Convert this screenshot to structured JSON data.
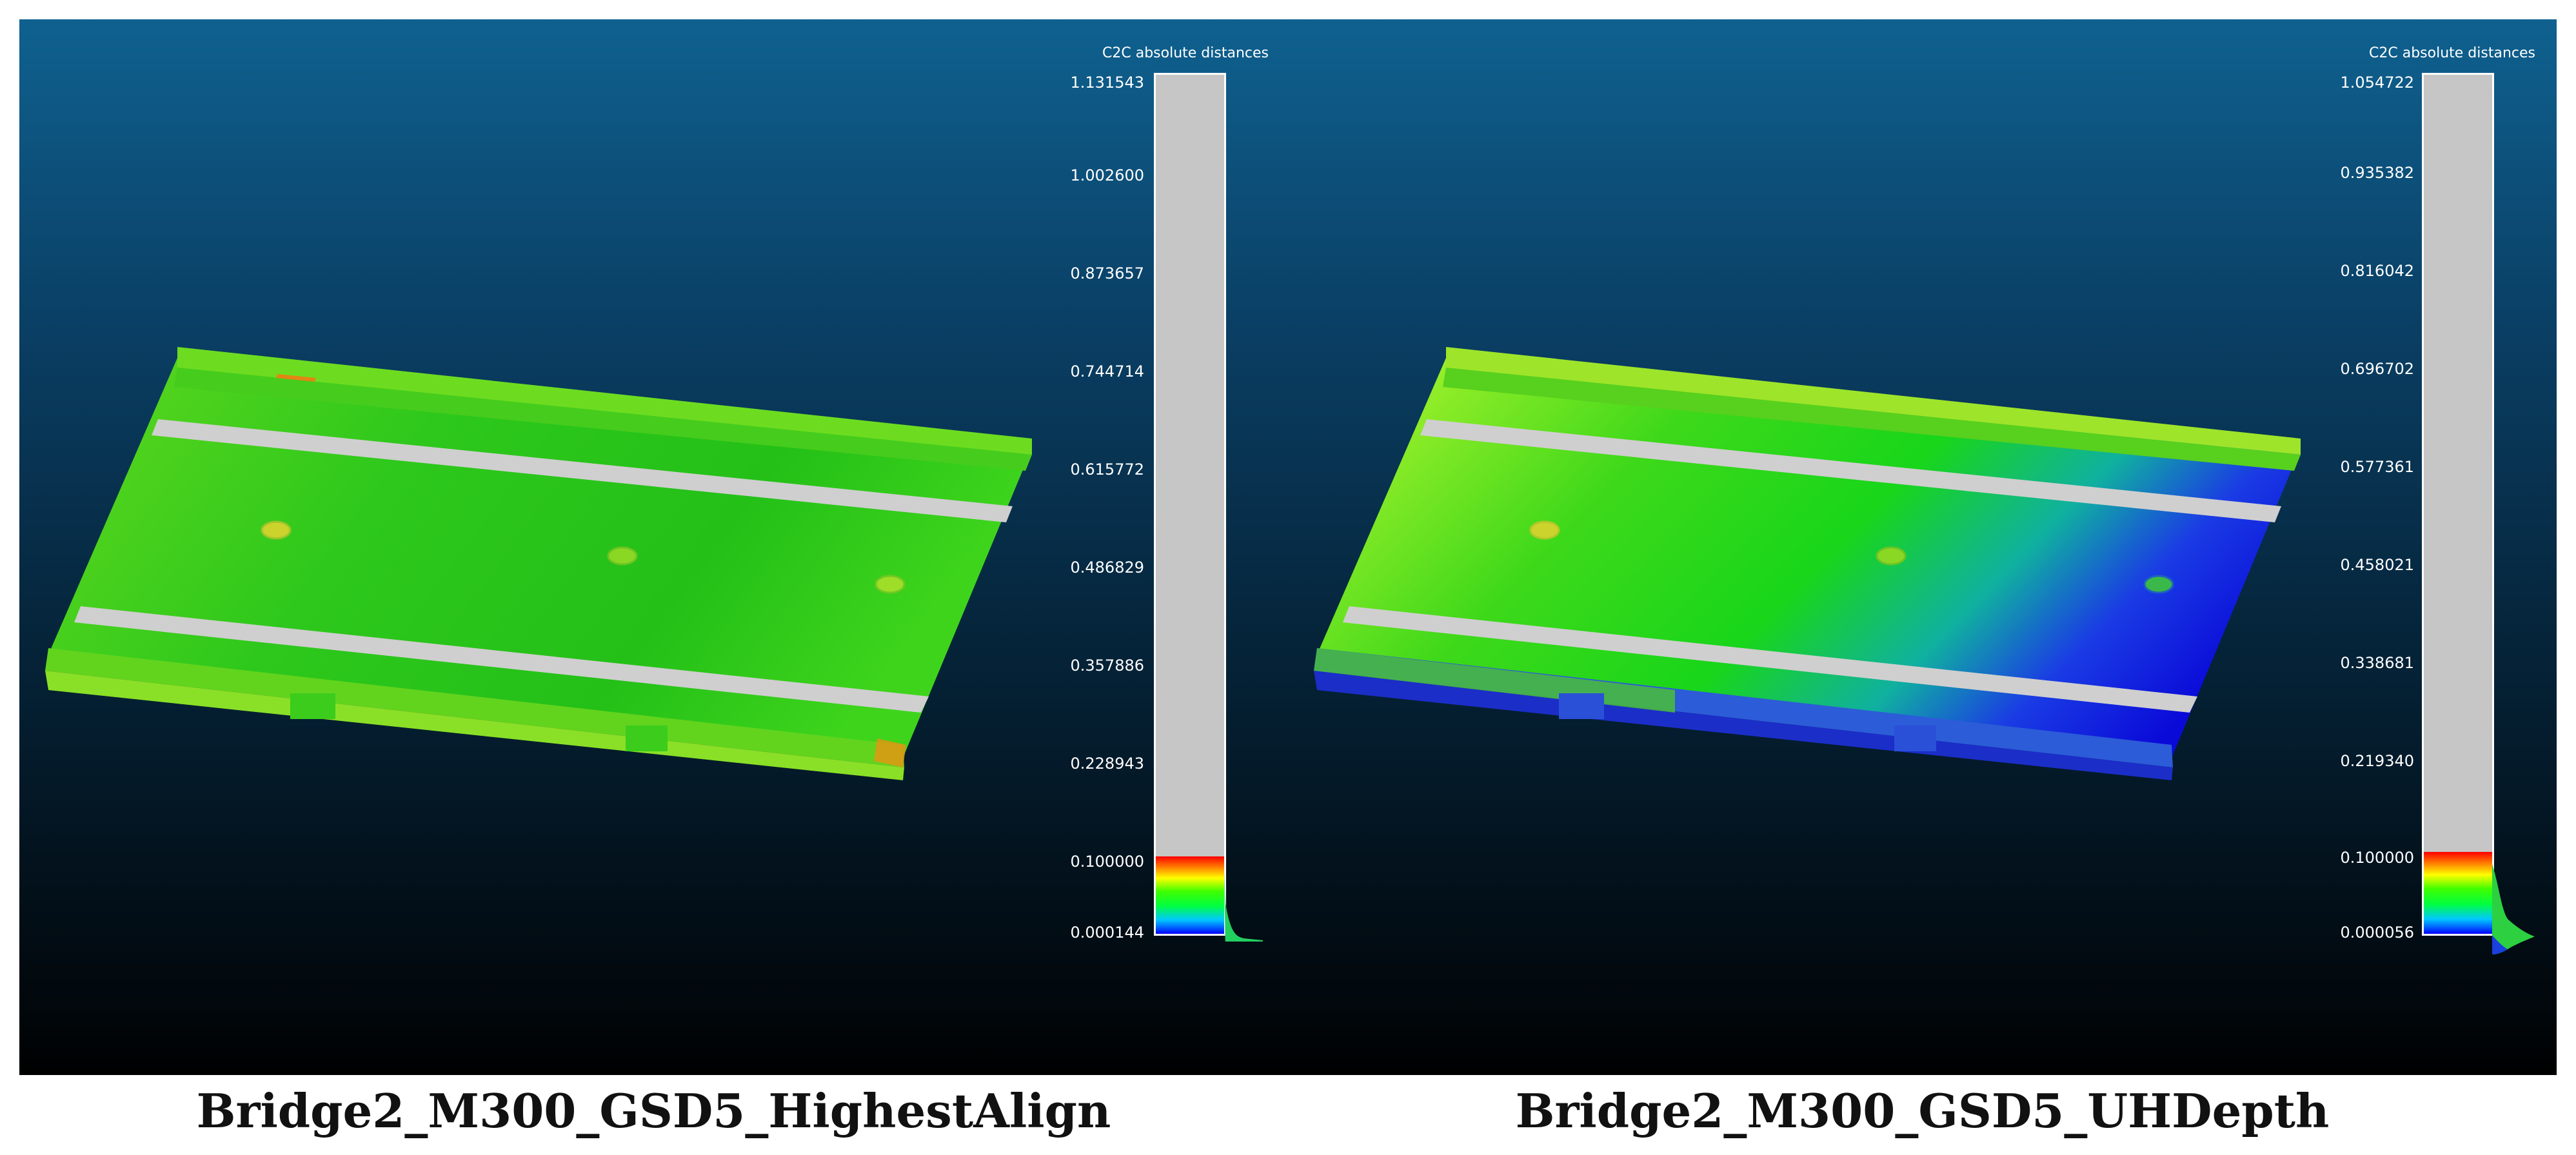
{
  "panels": [
    {
      "id": "left",
      "caption": "Bridge2_M300_GSD5_HighestAlign",
      "scale_title": "C2C absolute distances",
      "ticks": [
        "1.131543",
        "1.002600",
        "0.873657",
        "0.744714",
        "0.615772",
        "0.486829",
        "0.357886",
        "0.228943",
        "0.100000",
        "0.000144"
      ],
      "colored_fraction": 0.09,
      "cloud_colors": {
        "top": "#6ddc20",
        "mid": "#2ec81c",
        "low": "#3fd41a",
        "edge": "#ff8a10"
      }
    },
    {
      "id": "right",
      "caption": "Bridge2_M300_GSD5_UHDepth",
      "scale_title": "C2C absolute distances",
      "ticks": [
        "1.054722",
        "0.935382",
        "0.816042",
        "0.696702",
        "0.577361",
        "0.458021",
        "0.338681",
        "0.219340",
        "0.100000",
        "0.000056"
      ],
      "colored_fraction": 0.095,
      "cloud_colors": {
        "top": "#8ff02a",
        "mid": "#22d818",
        "low": "#1a1ad8",
        "edge": "#1f3fe8"
      }
    }
  ]
}
